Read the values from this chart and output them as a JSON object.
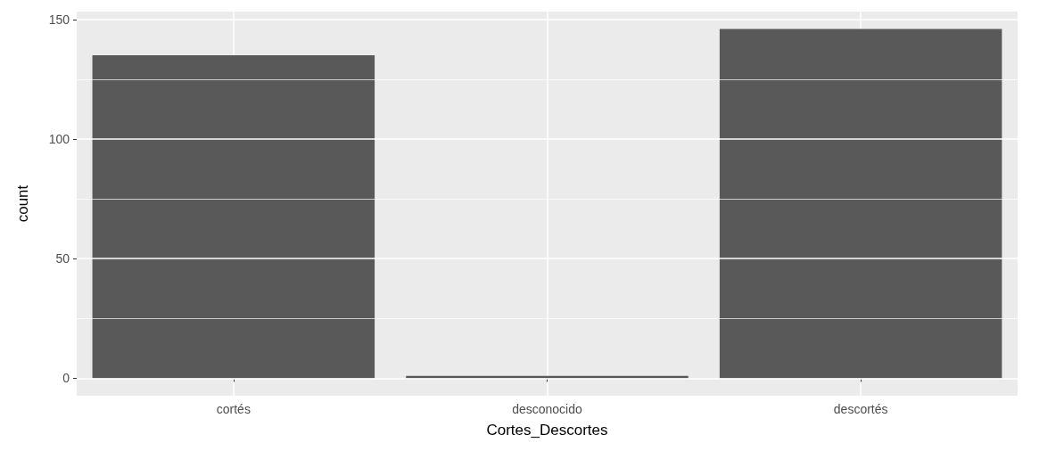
{
  "chart_data": {
    "type": "bar",
    "xlabel": "Cortes_Descortes",
    "ylabel": "count",
    "categories": [
      "cortés",
      "desconocido",
      "descortés"
    ],
    "values": [
      135,
      1,
      146
    ],
    "color": "#595959",
    "ylim": [
      -7.3,
      153.3
    ],
    "yticks": [
      0,
      50,
      100,
      150
    ],
    "grid": true
  }
}
